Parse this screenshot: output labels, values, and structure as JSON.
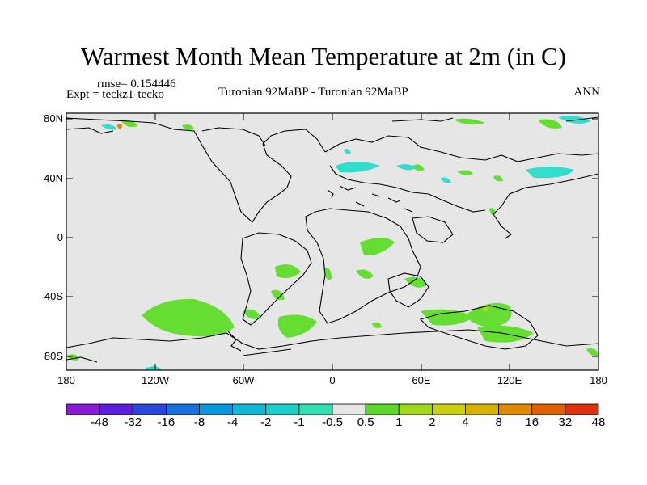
{
  "title": "Warmest Month Mean Temperature at 2m (in C)",
  "rmse_label": "rmse= 0.154446",
  "expt_label": "Expt = teckz1-tecko",
  "center_label": "Turonian  92MaBP - Turonian  92MaBP",
  "season_label": "ANN",
  "lat_ticks": [
    "80N",
    "40N",
    "0",
    "40S",
    "80S"
  ],
  "lon_ticks": [
    "180",
    "120W",
    "60W",
    "0",
    "60E",
    "120E",
    "180"
  ],
  "colorbar": {
    "labels": [
      "-48",
      "-32",
      "-16",
      "-8",
      "-4",
      "-2",
      "-1",
      "-0.5",
      "0.5",
      "1",
      "2",
      "4",
      "8",
      "16",
      "32",
      "48"
    ],
    "colors": [
      "#8a1ad8",
      "#5a1fe0",
      "#2a48e0",
      "#1870e0",
      "#0898e0",
      "#10b8d8",
      "#18d0c8",
      "#30e0b0",
      "#e6e6e6",
      "#5ad828",
      "#a0d818",
      "#c8d010",
      "#d8b000",
      "#e08800",
      "#e06000",
      "#e03010"
    ]
  },
  "map_colors": {
    "background": "#e6e6e6",
    "positive_small": "#66dd33",
    "negative_small": "#33ddcc",
    "coast": "#000000"
  }
}
